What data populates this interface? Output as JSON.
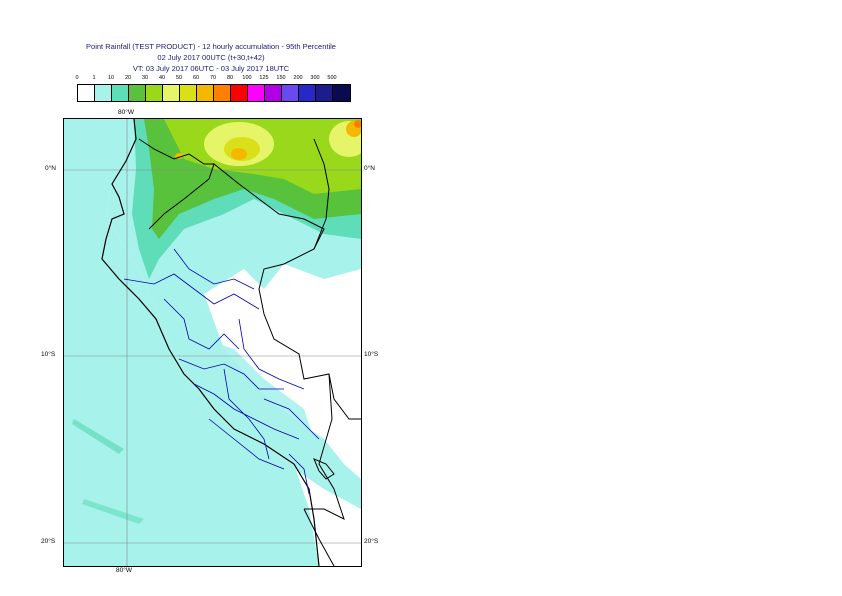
{
  "title": {
    "line1": "Point Rainfall (TEST PRODUCT) - 12 hourly accumulation - 95th Percentile",
    "line2": "02 July 2017 00UTC (t+30,t+42)",
    "line3": "VT: 03 July 2017 06UTC - 03 July 2017 18UTC"
  },
  "legend": {
    "ticks": [
      "0",
      "1",
      "10",
      "20",
      "30",
      "40",
      "50",
      "60",
      "70",
      "80",
      "100",
      "125",
      "150",
      "200",
      "300",
      "500"
    ],
    "colors": [
      "#ffffff",
      "#a8f2ec",
      "#5fdcb8",
      "#58c23c",
      "#9ad81c",
      "#e6f568",
      "#d9e01a",
      "#f5b800",
      "#ff7f00",
      "#ff0000",
      "#ff00ff",
      "#b200e6",
      "#6a4af0",
      "#2828c8",
      "#1c1c8c",
      "#0a0a50"
    ]
  },
  "map": {
    "lon_labels": {
      "top": "80°W",
      "bottom": "80°W"
    },
    "lat_labels": {
      "eq": "0°N",
      "s10": "10°S",
      "s20": "20°S"
    },
    "colors": {
      "ocean": "#a8f2ec",
      "land": "#ffffff",
      "border": "#000000",
      "regions": "#0000b0",
      "grid": "#888888"
    }
  }
}
